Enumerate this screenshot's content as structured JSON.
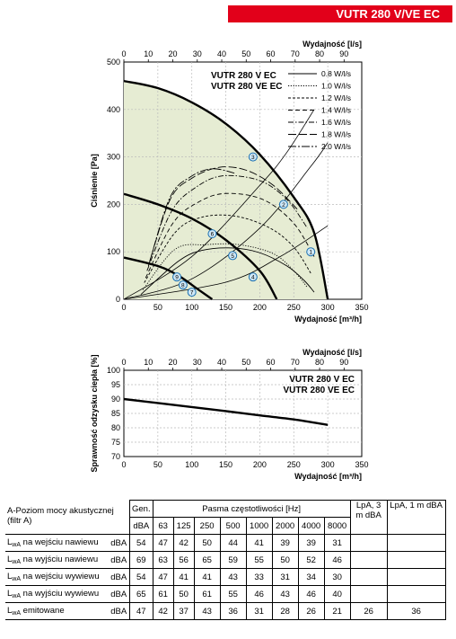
{
  "banner": {
    "title": "VUTR 280 V/VE EC"
  },
  "chart_data": [
    {
      "type": "line",
      "ylabel": "Ciśnienie [Pa]",
      "xlabel": "Wydajność [m³/h]",
      "x2label": "Wydajność [l/s]",
      "xlim": [
        0,
        350
      ],
      "ylim": [
        0,
        500
      ],
      "x_ticks": [
        "0",
        "50",
        "100",
        "150",
        "200",
        "250",
        "300",
        "350"
      ],
      "x2_ticks": [
        "0",
        "10",
        "20",
        "30",
        "40",
        "50",
        "60",
        "70",
        "80",
        "90"
      ],
      "y_ticks": [
        "0",
        "100",
        "200",
        "300",
        "400",
        "500"
      ],
      "model_labels": [
        "VUTR 280 V EC",
        "VUTR 280 VE EC"
      ],
      "legend": [
        "0.8 W/l/s",
        "1.0 W/l/s",
        "1.2 W/l/s",
        "1.4 W/l/s",
        "1.6 W/l/s",
        "1.8 W/l/s",
        "2.0 W/l/s"
      ],
      "grid": true,
      "fan_curves": [
        {
          "points": [
            [
              0,
              460
            ],
            [
              50,
              445
            ],
            [
              100,
              415
            ],
            [
              150,
              370
            ],
            [
              200,
              305
            ],
            [
              250,
              215
            ],
            [
              280,
              140
            ],
            [
              300,
              0
            ]
          ]
        },
        {
          "points": [
            [
              0,
              222
            ],
            [
              50,
              200
            ],
            [
              100,
              170
            ],
            [
              150,
              125
            ],
            [
              200,
              60
            ],
            [
              225,
              0
            ]
          ]
        },
        {
          "points": [
            [
              0,
              88
            ],
            [
              50,
              70
            ],
            [
              80,
              50
            ],
            [
              110,
              20
            ],
            [
              130,
              0
            ]
          ]
        }
      ],
      "system_curves": [
        {
          "points": [
            [
              0,
              0
            ],
            [
              100,
              90
            ],
            [
              200,
              240
            ],
            [
              240,
              310
            ],
            [
              280,
              400
            ]
          ]
        },
        {
          "points": [
            [
              0,
              0
            ],
            [
              100,
              43
            ],
            [
              200,
              150
            ],
            [
              275,
              280
            ],
            [
              300,
              330
            ]
          ]
        },
        {
          "points": [
            [
              0,
              0
            ],
            [
              150,
              36
            ],
            [
              230,
              90
            ],
            [
              300,
              155
            ]
          ]
        }
      ],
      "sfp_curves": [
        {
          "style": "solid",
          "points": [
            [
              25,
              10
            ],
            [
              80,
              80
            ],
            [
              115,
              103
            ],
            [
              160,
              108
            ],
            [
              200,
              98
            ],
            [
              240,
              70
            ],
            [
              265,
              40
            ],
            [
              280,
              15
            ]
          ]
        },
        {
          "style": "dotted",
          "points": [
            [
              28,
              20
            ],
            [
              75,
              105
            ],
            [
              120,
              115
            ],
            [
              170,
              115
            ],
            [
              220,
              96
            ],
            [
              250,
              60
            ],
            [
              270,
              25
            ]
          ]
        },
        {
          "style": "short-dash",
          "points": [
            [
              30,
              35
            ],
            [
              75,
              140
            ],
            [
              115,
              173
            ],
            [
              165,
              175
            ],
            [
              215,
              150
            ],
            [
              250,
              110
            ],
            [
              275,
              55
            ]
          ]
        },
        {
          "style": "dash",
          "points": [
            [
              32,
              45
            ],
            [
              72,
              160
            ],
            [
              110,
              205
            ],
            [
              150,
              223
            ],
            [
              205,
              210
            ],
            [
              250,
              160
            ],
            [
              280,
              90
            ]
          ]
        },
        {
          "style": "dash-dot",
          "points": [
            [
              34,
              60
            ],
            [
              70,
              185
            ],
            [
              105,
              235
            ],
            [
              145,
              260
            ],
            [
              200,
              250
            ],
            [
              240,
              210
            ],
            [
              270,
              150
            ]
          ]
        },
        {
          "style": "long-dash",
          "points": [
            [
              36,
              70
            ],
            [
              68,
              210
            ],
            [
              100,
              255
            ],
            [
              140,
              278
            ],
            [
              180,
              272
            ],
            [
              220,
              240
            ],
            [
              255,
              190
            ]
          ]
        },
        {
          "style": "long-dash-dot",
          "points": [
            [
              38,
              80
            ],
            [
              68,
              215
            ],
            [
              98,
              258
            ],
            [
              130,
              275
            ],
            [
              165,
              265
            ]
          ]
        }
      ],
      "operating_points": [
        {
          "label": "1",
          "x": 275,
          "y": 100
        },
        {
          "label": "2",
          "x": 235,
          "y": 200
        },
        {
          "label": "3",
          "x": 190,
          "y": 300
        },
        {
          "label": "4",
          "x": 190,
          "y": 47
        },
        {
          "label": "5",
          "x": 160,
          "y": 92
        },
        {
          "label": "6",
          "x": 130,
          "y": 138
        },
        {
          "label": "7",
          "x": 100,
          "y": 15
        },
        {
          "label": "8",
          "x": 87,
          "y": 30
        },
        {
          "label": "9",
          "x": 78,
          "y": 47
        }
      ]
    },
    {
      "type": "line",
      "ylabel": "Sprawność odzysku ciepła [%]",
      "xlabel": "Wydajność [m³/h]",
      "x2label": "Wydajność [l/s]",
      "xlim": [
        0,
        350
      ],
      "ylim": [
        70,
        100
      ],
      "x_ticks": [
        "0",
        "50",
        "100",
        "150",
        "200",
        "250",
        "300",
        "350"
      ],
      "x2_ticks": [
        "0",
        "10",
        "20",
        "30",
        "40",
        "50",
        "60",
        "70",
        "80",
        "90"
      ],
      "y_ticks": [
        "70",
        "75",
        "80",
        "85",
        "90",
        "95",
        "100"
      ],
      "model_labels": [
        "VUTR 280 V EC",
        "VUTR 280 VE EC"
      ],
      "grid": true,
      "series": [
        {
          "x": [
            0,
            50,
            100,
            150,
            200,
            250,
            300
          ],
          "y": [
            90,
            88.6,
            87.2,
            85.8,
            84.3,
            82.9,
            81
          ]
        }
      ]
    }
  ],
  "table": {
    "row_header": "A-Poziom mocy akustycznej (filtr A)",
    "gen": "Gen.",
    "bands_title": "Pasma częstotliwości [Hz]",
    "lpa3": "LpA, 3 m dBA",
    "lpa1": "LpA, 1 m dBA",
    "unit": "dBA",
    "bands": [
      "63",
      "125",
      "250",
      "500",
      "1000",
      "2000",
      "4000",
      "8000"
    ],
    "rows": [
      {
        "lw": "L",
        "sub": "wA",
        "label": " na wejściu nawiewu",
        "unit": "dBA",
        "gen": "54",
        "values": [
          "47",
          "42",
          "50",
          "44",
          "41",
          "39",
          "39",
          "31"
        ],
        "lpa3": "",
        "lpa1": ""
      },
      {
        "lw": "L",
        "sub": "wA",
        "label": " na wyjściu nawiewu",
        "unit": "dBA",
        "gen": "69",
        "values": [
          "63",
          "56",
          "65",
          "59",
          "55",
          "50",
          "52",
          "46"
        ],
        "lpa3": "",
        "lpa1": ""
      },
      {
        "lw": "L",
        "sub": "wA",
        "label": " na wejściu wywiewu",
        "unit": "dBA",
        "gen": "54",
        "values": [
          "47",
          "41",
          "41",
          "43",
          "33",
          "31",
          "34",
          "30"
        ],
        "lpa3": "",
        "lpa1": ""
      },
      {
        "lw": "L",
        "sub": "wA",
        "label": " na wyjściu wywiewu",
        "unit": "dBA",
        "gen": "65",
        "values": [
          "61",
          "50",
          "61",
          "55",
          "46",
          "43",
          "46",
          "40"
        ],
        "lpa3": "",
        "lpa1": ""
      },
      {
        "lw": "L",
        "sub": "wA",
        "label": " emitowane",
        "unit": "dBA",
        "gen": "47",
        "values": [
          "42",
          "37",
          "43",
          "36",
          "31",
          "28",
          "26",
          "21"
        ],
        "lpa3": "26",
        "lpa1": "36"
      }
    ]
  }
}
